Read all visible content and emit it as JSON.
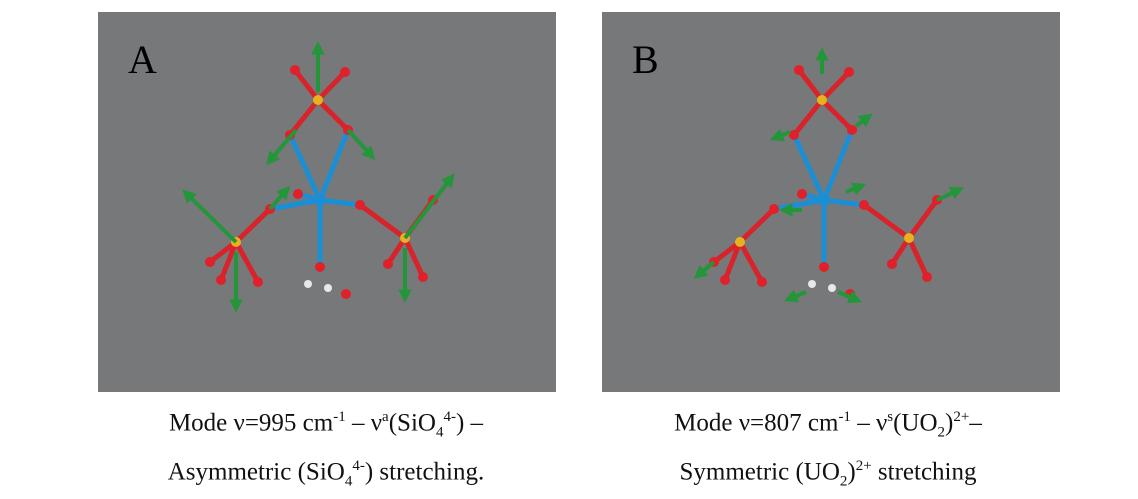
{
  "panels": [
    {
      "label": "A",
      "caption": [
        [
          {
            "text": "Mode ν=995 cm"
          },
          {
            "text": "-1",
            "pos": "sup"
          },
          {
            "text": " – ν"
          },
          {
            "text": "a",
            "pos": "sup"
          },
          {
            "text": "(SiO"
          },
          {
            "text": "4",
            "pos": "sub"
          },
          {
            "text": "4-",
            "pos": "sup"
          },
          {
            "text": ") –"
          }
        ],
        [
          {
            "text": "Asymmetric (SiO"
          },
          {
            "text": "4",
            "pos": "sub"
          },
          {
            "text": "4-",
            "pos": "sup"
          },
          {
            "text": ") stretching."
          }
        ]
      ]
    },
    {
      "label": "B",
      "caption": [
        [
          {
            "text": "Mode ν=807 cm"
          },
          {
            "text": "-1",
            "pos": "sup"
          },
          {
            "text": " – ν"
          },
          {
            "text": "s",
            "pos": "sup"
          },
          {
            "text": "(UO"
          },
          {
            "text": "2",
            "pos": "sub"
          },
          {
            "text": ")"
          },
          {
            "text": "2+",
            "pos": "sup"
          },
          {
            "text": "–"
          }
        ],
        [
          {
            "text": "Symmetric (UO"
          },
          {
            "text": "2",
            "pos": "sub"
          },
          {
            "text": ")"
          },
          {
            "text": "2+",
            "pos": "sup"
          },
          {
            "text": " stretching"
          }
        ]
      ]
    }
  ]
}
